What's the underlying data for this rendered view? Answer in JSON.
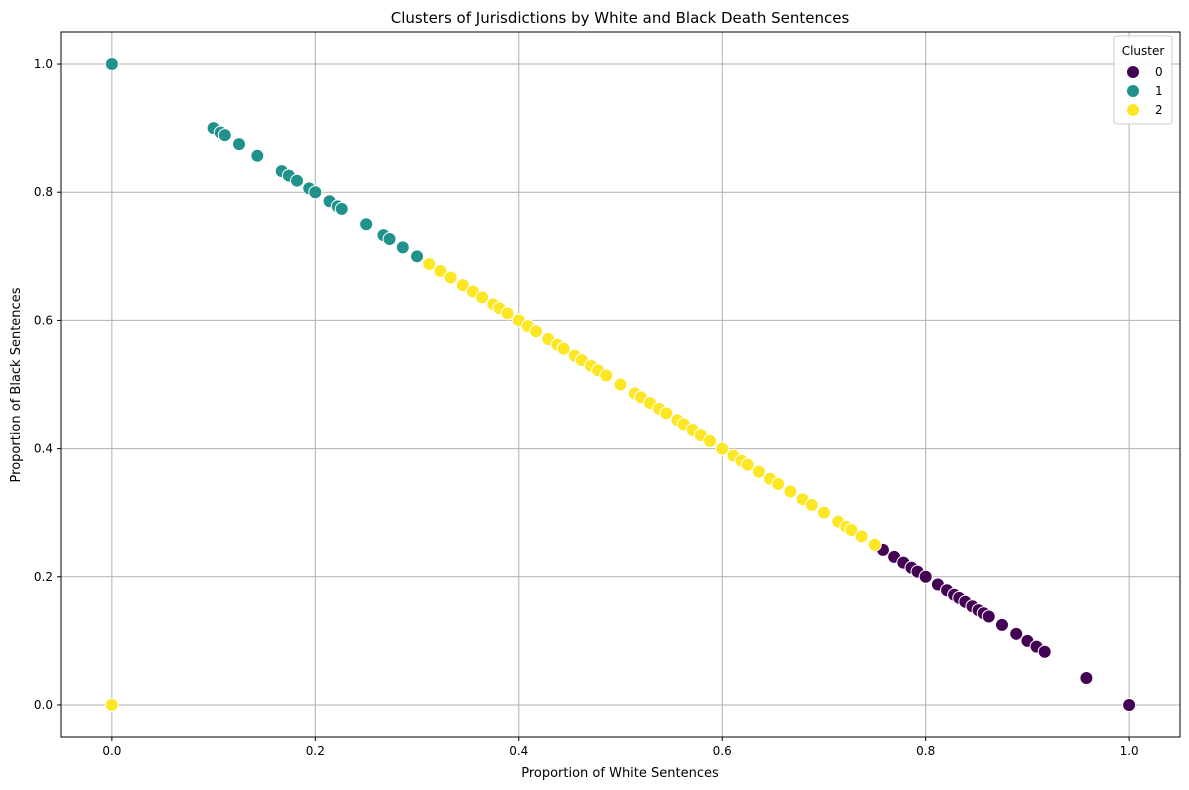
{
  "chart_data": {
    "type": "scatter",
    "title": "Clusters of Jurisdictions by White and Black Death Sentences",
    "xlabel": "Proportion of White Sentences",
    "ylabel": "Proportion of Black Sentences",
    "xlim": [
      -0.05,
      1.05
    ],
    "ylim": [
      -0.05,
      1.05
    ],
    "xticks": [
      0.0,
      0.2,
      0.4,
      0.6,
      0.8,
      1.0
    ],
    "yticks": [
      0.0,
      0.2,
      0.4,
      0.6,
      0.8,
      1.0
    ],
    "xtick_labels": [
      "0.0",
      "0.2",
      "0.4",
      "0.6",
      "0.8",
      "1.0"
    ],
    "ytick_labels": [
      "0.0",
      "0.2",
      "0.4",
      "0.6",
      "0.8",
      "1.0"
    ],
    "grid": true,
    "legend": {
      "title": "Cluster",
      "placement": "top-right"
    },
    "series": [
      {
        "name": "0",
        "color": "#440154",
        "points": [
          [
            0.758,
            0.242
          ],
          [
            0.769,
            0.231
          ],
          [
            0.778,
            0.222
          ],
          [
            0.786,
            0.214
          ],
          [
            0.792,
            0.208
          ],
          [
            0.8,
            0.2
          ],
          [
            0.812,
            0.188
          ],
          [
            0.821,
            0.179
          ],
          [
            0.828,
            0.172
          ],
          [
            0.833,
            0.167
          ],
          [
            0.839,
            0.161
          ],
          [
            0.846,
            0.154
          ],
          [
            0.852,
            0.148
          ],
          [
            0.857,
            0.143
          ],
          [
            0.862,
            0.138
          ],
          [
            0.875,
            0.125
          ],
          [
            0.889,
            0.111
          ],
          [
            0.9,
            0.1
          ],
          [
            0.909,
            0.091
          ],
          [
            0.917,
            0.083
          ],
          [
            0.958,
            0.042
          ],
          [
            1.0,
            0.0
          ]
        ]
      },
      {
        "name": "1",
        "color": "#21918c",
        "points": [
          [
            0.0,
            1.0
          ],
          [
            0.1,
            0.9
          ],
          [
            0.107,
            0.893
          ],
          [
            0.111,
            0.889
          ],
          [
            0.125,
            0.875
          ],
          [
            0.143,
            0.857
          ],
          [
            0.167,
            0.833
          ],
          [
            0.174,
            0.826
          ],
          [
            0.182,
            0.818
          ],
          [
            0.194,
            0.806
          ],
          [
            0.2,
            0.8
          ],
          [
            0.214,
            0.786
          ],
          [
            0.222,
            0.778
          ],
          [
            0.226,
            0.774
          ],
          [
            0.25,
            0.75
          ],
          [
            0.267,
            0.733
          ],
          [
            0.273,
            0.727
          ],
          [
            0.286,
            0.714
          ],
          [
            0.3,
            0.7
          ]
        ]
      },
      {
        "name": "2",
        "color": "#fde725",
        "points": [
          [
            0.0,
            0.0
          ],
          [
            0.312,
            0.688
          ],
          [
            0.323,
            0.677
          ],
          [
            0.333,
            0.667
          ],
          [
            0.345,
            0.655
          ],
          [
            0.355,
            0.645
          ],
          [
            0.364,
            0.636
          ],
          [
            0.375,
            0.625
          ],
          [
            0.381,
            0.619
          ],
          [
            0.389,
            0.611
          ],
          [
            0.4,
            0.6
          ],
          [
            0.409,
            0.591
          ],
          [
            0.417,
            0.583
          ],
          [
            0.429,
            0.571
          ],
          [
            0.438,
            0.562
          ],
          [
            0.444,
            0.556
          ],
          [
            0.455,
            0.545
          ],
          [
            0.462,
            0.538
          ],
          [
            0.471,
            0.529
          ],
          [
            0.478,
            0.522
          ],
          [
            0.486,
            0.514
          ],
          [
            0.5,
            0.5
          ],
          [
            0.514,
            0.486
          ],
          [
            0.52,
            0.48
          ],
          [
            0.529,
            0.471
          ],
          [
            0.538,
            0.462
          ],
          [
            0.545,
            0.455
          ],
          [
            0.556,
            0.444
          ],
          [
            0.562,
            0.438
          ],
          [
            0.571,
            0.429
          ],
          [
            0.579,
            0.421
          ],
          [
            0.588,
            0.412
          ],
          [
            0.6,
            0.4
          ],
          [
            0.611,
            0.389
          ],
          [
            0.619,
            0.381
          ],
          [
            0.625,
            0.375
          ],
          [
            0.636,
            0.364
          ],
          [
            0.647,
            0.353
          ],
          [
            0.655,
            0.345
          ],
          [
            0.667,
            0.333
          ],
          [
            0.679,
            0.321
          ],
          [
            0.688,
            0.312
          ],
          [
            0.7,
            0.3
          ],
          [
            0.714,
            0.286
          ],
          [
            0.722,
            0.278
          ],
          [
            0.727,
            0.273
          ],
          [
            0.737,
            0.263
          ],
          [
            0.75,
            0.25
          ]
        ]
      }
    ]
  }
}
